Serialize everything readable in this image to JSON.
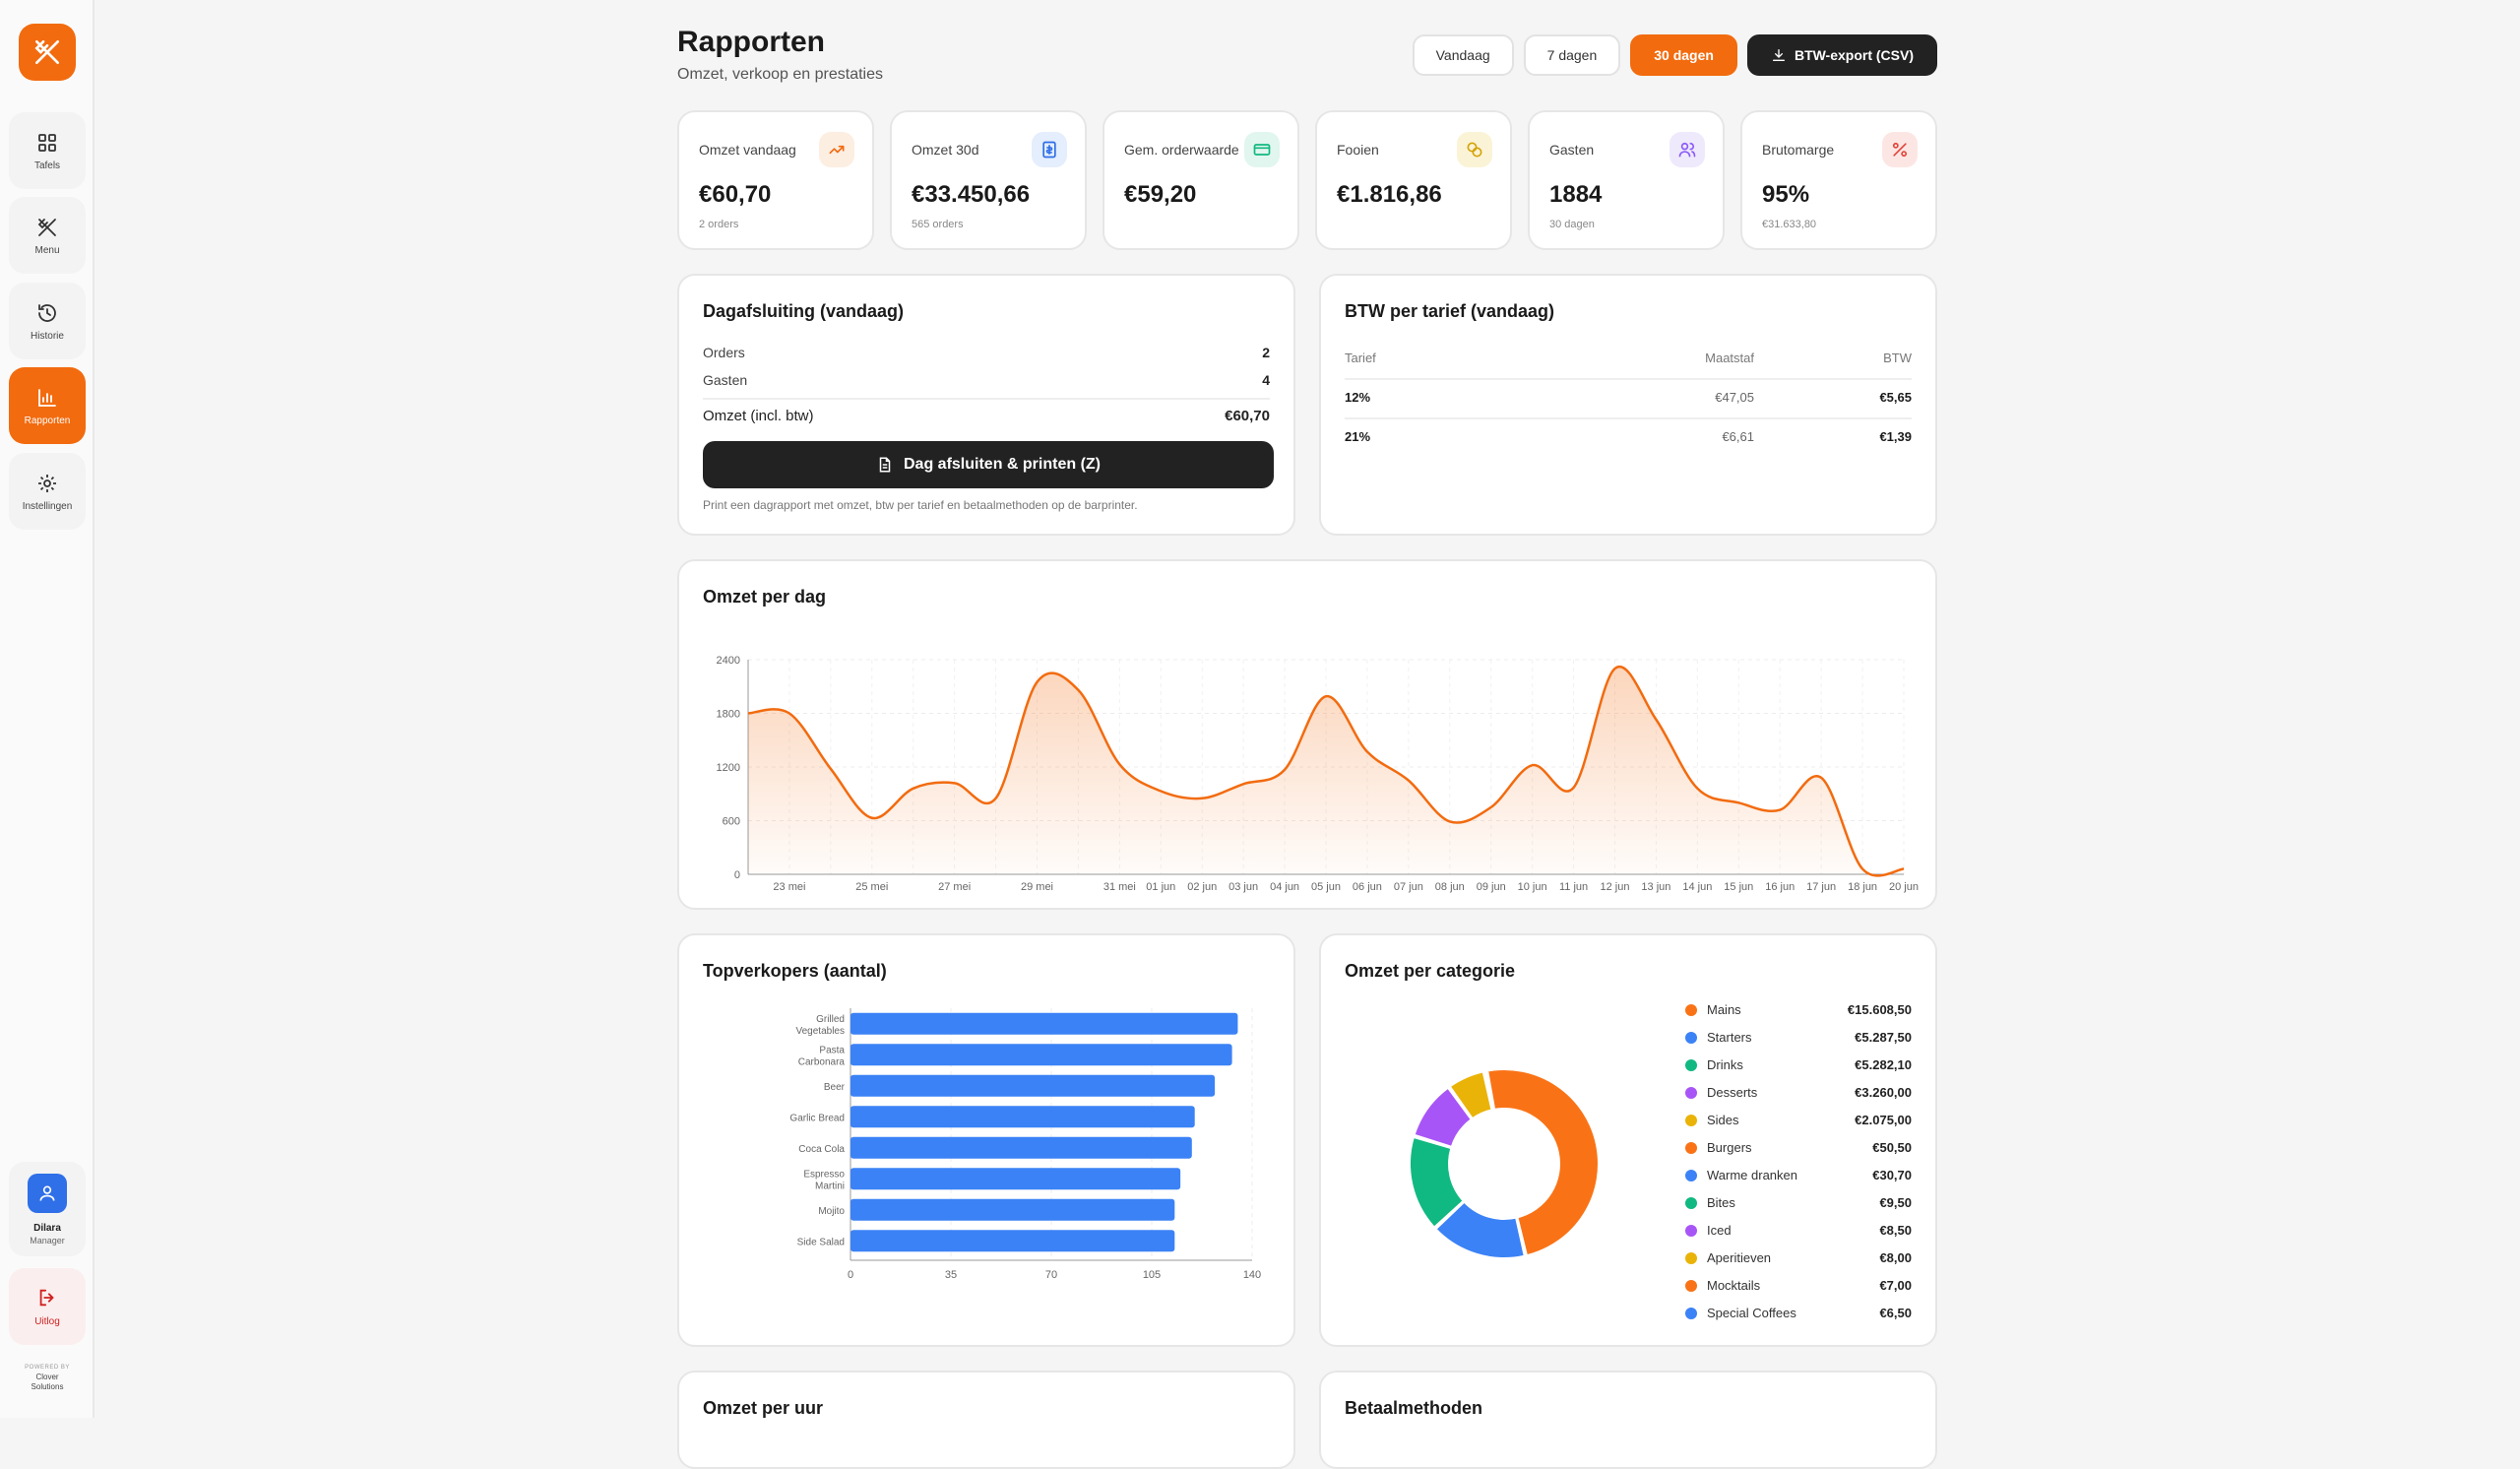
{
  "sidebar": {
    "items": [
      {
        "label": "Tafels",
        "icon": "grid-icon"
      },
      {
        "label": "Menu",
        "icon": "utensils-icon"
      },
      {
        "label": "Historie",
        "icon": "history-icon"
      },
      {
        "label": "Rapporten",
        "icon": "chart-icon"
      },
      {
        "label": "Instellingen",
        "icon": "gear-icon"
      }
    ],
    "user": {
      "name": "Dilara",
      "role": "Manager"
    },
    "logout": "Uitlog",
    "powered_by": "POWERED BY",
    "company_line1": "Clover",
    "company_line2": "Solutions"
  },
  "header": {
    "title": "Rapporten",
    "subtitle": "Omzet, verkoop en prestaties",
    "ranges": [
      "Vandaag",
      "7 dagen",
      "30 dagen"
    ],
    "active_range": "30 dagen",
    "export_label": "BTW-export (CSV)"
  },
  "kpis": [
    {
      "label": "Omzet vandaag",
      "value": "€60,70",
      "sub": "2 orders",
      "icon": "trend-up-icon",
      "color": "#f26b0f",
      "bg": "#fdeee2"
    },
    {
      "label": "Omzet 30d",
      "value": "€33.450,66",
      "sub": "565 orders",
      "icon": "receipt-icon",
      "color": "#2f6fe8",
      "bg": "#e4eefc"
    },
    {
      "label": "Gem. orderwaarde",
      "value": "€59,20",
      "sub": "",
      "icon": "card-icon",
      "color": "#10b981",
      "bg": "#e1f6ee"
    },
    {
      "label": "Fooien",
      "value": "€1.816,86",
      "sub": "",
      "icon": "coins-icon",
      "color": "#d4a30a",
      "bg": "#fbf3d6"
    },
    {
      "label": "Gasten",
      "value": "1884",
      "sub": "30 dagen",
      "icon": "users-icon",
      "color": "#8b5cf6",
      "bg": "#efe9fc"
    },
    {
      "label": "Brutomarge",
      "value": "95%",
      "sub": "€31.633,80",
      "icon": "percent-icon",
      "color": "#e2463c",
      "bg": "#fce6e3"
    }
  ],
  "dagafsluiting": {
    "title": "Dagafsluiting (vandaag)",
    "orders_label": "Orders",
    "orders_value": "2",
    "gasten_label": "Gasten",
    "gasten_value": "4",
    "omzet_label": "Omzet (incl. btw)",
    "omzet_value": "€60,70",
    "button": "Dag afsluiten & printen (Z)",
    "hint": "Print een dagrapport met omzet, btw per tarief en betaalmethoden op de barprinter."
  },
  "btw": {
    "title": "BTW per tarief (vandaag)",
    "headers": [
      "Tarief",
      "Maatstaf",
      "BTW"
    ],
    "rows": [
      {
        "tarief": "12%",
        "maatstaf": "€47,05",
        "btw": "€5,65"
      },
      {
        "tarief": "21%",
        "maatstaf": "€6,61",
        "btw": "€1,39"
      }
    ]
  },
  "sections": {
    "omzet_per_uur": "Omzet per uur",
    "betaalmethoden": "Betaalmethoden"
  },
  "chart_data": [
    {
      "type": "area",
      "title": "Omzet per dag",
      "color": "#f26b0f",
      "ylim": [
        0,
        2400
      ],
      "yticks": [
        0,
        600,
        1200,
        1800,
        2400
      ],
      "xtick_labels": [
        "23 mei",
        "25 mei",
        "27 mei",
        "29 mei",
        "31 mei",
        "01 jun",
        "02 jun",
        "03 jun",
        "04 jun",
        "05 jun",
        "06 jun",
        "07 jun",
        "08 jun",
        "09 jun",
        "10 jun",
        "11 jun",
        "12 jun",
        "13 jun",
        "14 jun",
        "15 jun",
        "16 jun",
        "17 jun",
        "18 jun",
        "20 jun"
      ],
      "x": [
        "22 mei",
        "23 mei",
        "24 mei",
        "25 mei",
        "26 mei",
        "27 mei",
        "28 mei",
        "29 mei",
        "30 mei",
        "31 mei",
        "01 jun",
        "02 jun",
        "03 jun",
        "04 jun",
        "05 jun",
        "06 jun",
        "07 jun",
        "08 jun",
        "09 jun",
        "10 jun",
        "11 jun",
        "12 jun",
        "13 jun",
        "14 jun",
        "15 jun",
        "16 jun",
        "17 jun",
        "18 jun",
        "20 jun"
      ],
      "values": [
        1800,
        1800,
        1180,
        630,
        960,
        1020,
        850,
        2150,
        2060,
        1230,
        930,
        850,
        1010,
        1170,
        1990,
        1370,
        1050,
        590,
        750,
        1220,
        970,
        2300,
        1730,
        960,
        800,
        720,
        1080,
        60,
        60
      ],
      "grid": true
    },
    {
      "type": "bar",
      "orientation": "horizontal",
      "title": "Topverkopers (aantal)",
      "color": "#3b82f6",
      "categories": [
        "Grilled Vegetables",
        "Pasta Carbonara",
        "Beer",
        "Garlic Bread",
        "Coca Cola",
        "Espresso Martini",
        "Mojito",
        "Side Salad"
      ],
      "values": [
        135,
        133,
        127,
        120,
        119,
        115,
        113,
        113
      ],
      "xlim": [
        0,
        140
      ],
      "xticks": [
        0,
        35,
        70,
        105,
        140
      ]
    },
    {
      "type": "pie",
      "title": "Omzet per categorie",
      "donut": true,
      "slices": [
        {
          "label": "Mains",
          "value": 15608.5,
          "display": "€15.608,50",
          "color": "#f97316"
        },
        {
          "label": "Starters",
          "value": 5287.5,
          "display": "€5.287,50",
          "color": "#3b82f6"
        },
        {
          "label": "Drinks",
          "value": 5282.1,
          "display": "€5.282,10",
          "color": "#10b981"
        },
        {
          "label": "Desserts",
          "value": 3260.0,
          "display": "€3.260,00",
          "color": "#a855f7"
        },
        {
          "label": "Sides",
          "value": 2075.0,
          "display": "€2.075,00",
          "color": "#eab308"
        },
        {
          "label": "Burgers",
          "value": 50.5,
          "display": "€50,50",
          "color": "#f97316"
        },
        {
          "label": "Warme dranken",
          "value": 30.7,
          "display": "€30,70",
          "color": "#3b82f6"
        },
        {
          "label": "Bites",
          "value": 9.5,
          "display": "€9,50",
          "color": "#10b981"
        },
        {
          "label": "Iced",
          "value": 8.5,
          "display": "€8,50",
          "color": "#a855f7"
        },
        {
          "label": "Aperitieven",
          "value": 8.0,
          "display": "€8,00",
          "color": "#eab308"
        },
        {
          "label": "Mocktails",
          "value": 7.0,
          "display": "€7,00",
          "color": "#f97316"
        },
        {
          "label": "Special Coffees",
          "value": 6.5,
          "display": "€6,50",
          "color": "#3b82f6"
        }
      ]
    }
  ]
}
